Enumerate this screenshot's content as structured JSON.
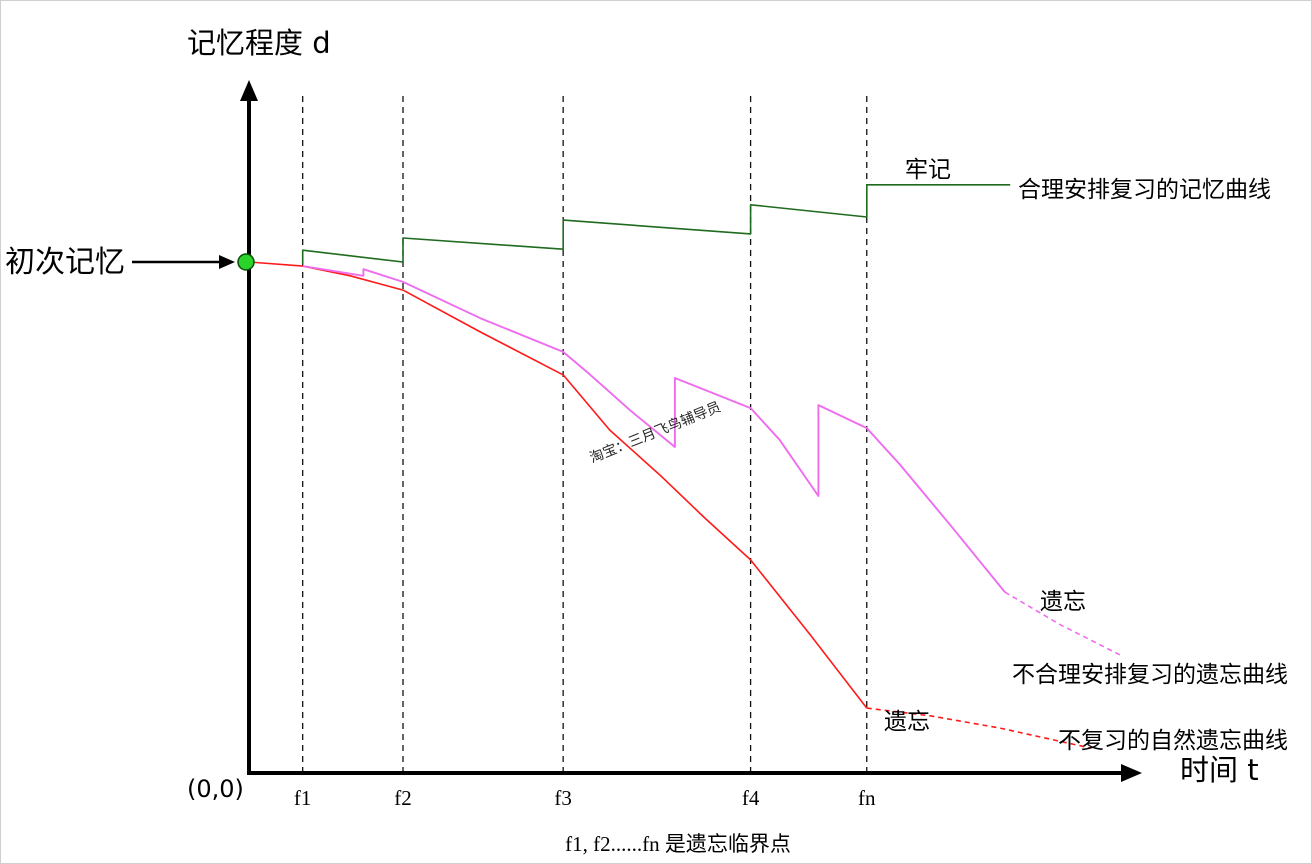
{
  "chart_data": {
    "type": "line",
    "title": "",
    "xlabel": "时间 t",
    "ylabel": "记忆程度 d",
    "origin_label": "(0,0)",
    "xlim": [
      0,
      100
    ],
    "ylim": [
      0,
      135
    ],
    "grid": false,
    "x_ticks": [
      {
        "label": "f1",
        "t": 6.1
      },
      {
        "label": "f2",
        "t": 17.5
      },
      {
        "label": "f3",
        "t": 35.7
      },
      {
        "label": "f4",
        "t": 57.0
      },
      {
        "label": "fn",
        "t": 70.2
      }
    ],
    "caption": "f1, f2......fn 是遗忘临界点",
    "start_marker": {
      "label": "初次记忆",
      "t": 0,
      "d": 100,
      "color": "#2bd42b"
    },
    "series": [
      {
        "name": "合理安排复习的记忆曲线",
        "end_label": "牢记",
        "color": "#1f6b1f",
        "label_color": "#000000",
        "points": [
          [
            6.1,
            99.6
          ],
          [
            6.1,
            102.3
          ],
          [
            17.5,
            100.0
          ],
          [
            17.5,
            104.7
          ],
          [
            35.7,
            102.5
          ],
          [
            35.7,
            108.2
          ],
          [
            57.0,
            105.5
          ],
          [
            57.0,
            111.2
          ],
          [
            70.2,
            108.8
          ],
          [
            70.2,
            115.1
          ],
          [
            86.5,
            115.1
          ]
        ]
      },
      {
        "name": "不合理安排复习的遗忘曲线",
        "end_label": "遗忘",
        "color": "#ee6cee",
        "label_color": "#c23cc2",
        "points": [
          [
            6.1,
            99.2
          ],
          [
            13.0,
            97.3
          ],
          [
            13.0,
            98.6
          ],
          [
            17.5,
            96.1
          ],
          [
            26.3,
            89.0
          ],
          [
            35.7,
            82.4
          ],
          [
            38.8,
            77.9
          ],
          [
            43.3,
            71.0
          ],
          [
            48.4,
            63.8
          ],
          [
            48.4,
            77.3
          ],
          [
            57.0,
            71.4
          ],
          [
            60.3,
            65.2
          ],
          [
            64.7,
            54.2
          ],
          [
            64.7,
            72.0
          ],
          [
            70.2,
            67.5
          ],
          [
            74.0,
            60.3
          ],
          [
            79.7,
            48.5
          ],
          [
            85.9,
            35.4
          ]
        ],
        "dashed_points": [
          [
            85.9,
            35.4
          ],
          [
            92.2,
            29.0
          ],
          [
            99.0,
            23.1
          ]
        ]
      },
      {
        "name": "不复习的自然遗忘曲线",
        "end_label": "遗忘",
        "color": "#ff1a1a",
        "label_color": "#ff0000",
        "points": [
          [
            0,
            100.0
          ],
          [
            6.1,
            99.2
          ],
          [
            11.5,
            97.3
          ],
          [
            17.5,
            94.5
          ],
          [
            26.3,
            86.3
          ],
          [
            35.7,
            77.9
          ],
          [
            41.0,
            67.1
          ],
          [
            46.7,
            58.3
          ],
          [
            51.8,
            49.9
          ],
          [
            57.0,
            41.7
          ],
          [
            63.8,
            27.0
          ],
          [
            70.2,
            12.7
          ]
        ],
        "dashed_points": [
          [
            70.2,
            12.7
          ],
          [
            77.4,
            11.2
          ],
          [
            85.3,
            8.8
          ],
          [
            95.6,
            4.9
          ]
        ]
      }
    ]
  },
  "watermark": "淘宝：三月飞鸟辅导员"
}
